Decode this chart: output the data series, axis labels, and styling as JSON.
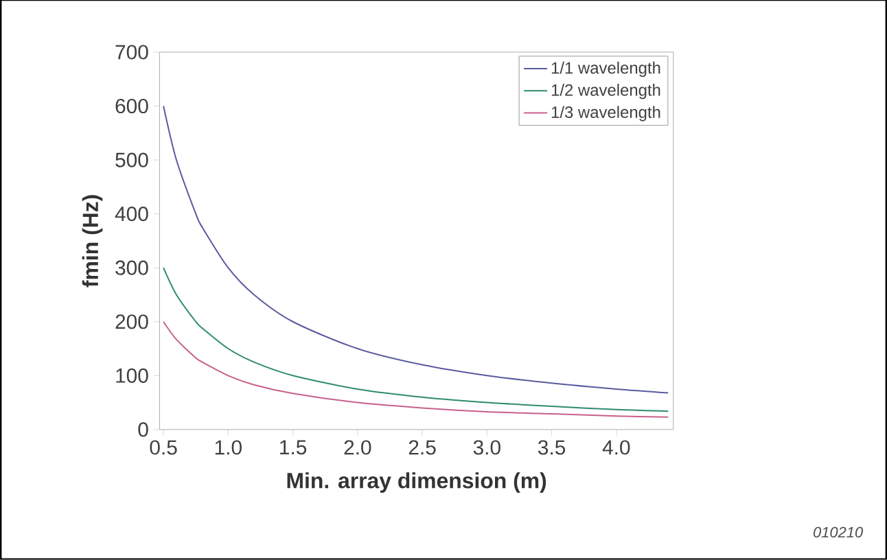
{
  "chart_data": {
    "type": "line",
    "xlabel": "Min. array dimension (m)",
    "ylabel": "fmin (Hz)",
    "annotations": [
      "010210"
    ],
    "xlim": [
      0.47,
      4.44
    ],
    "ylim": [
      0,
      700
    ],
    "xticks": [
      {
        "value": 0.5,
        "label": "0.5"
      },
      {
        "value": 1.0,
        "label": "1.0"
      },
      {
        "value": 1.5,
        "label": "1.5"
      },
      {
        "value": 2.0,
        "label": "2.0"
      },
      {
        "value": 2.5,
        "label": "2.5"
      },
      {
        "value": 3.0,
        "label": "3.0"
      },
      {
        "value": 3.5,
        "label": "3.5"
      },
      {
        "value": 4.0,
        "label": "4.0"
      }
    ],
    "yticks": [
      0,
      100,
      200,
      300,
      400,
      500,
      600,
      700
    ],
    "x": [
      0.5,
      0.6,
      0.75,
      0.8,
      1.0,
      1.2,
      1.5,
      2.0,
      2.5,
      3.0,
      3.5,
      4.0,
      4.4
    ],
    "series": [
      {
        "name": "1/1 wavelength",
        "color": "#5a5aa0",
        "values": [
          600,
          500,
          400,
          375,
          300,
          250,
          200,
          150,
          120,
          100,
          86,
          75,
          68
        ]
      },
      {
        "name": "1/2 wavelength",
        "color": "#2e8b6e",
        "values": [
          300,
          250,
          200,
          188,
          150,
          125,
          100,
          75,
          60,
          50,
          43,
          37,
          34
        ]
      },
      {
        "name": "1/3 wavelength",
        "color": "#c8608c",
        "values": [
          200,
          167,
          133,
          125,
          100,
          83,
          67,
          50,
          40,
          33,
          29,
          25,
          23
        ]
      }
    ],
    "legend": "top right",
    "grid": false,
    "marker": "none",
    "line_style": "solid"
  }
}
